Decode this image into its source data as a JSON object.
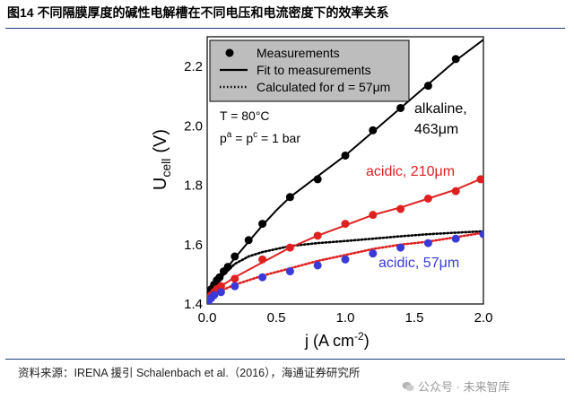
{
  "figure": {
    "title": "图14 不同隔膜厚度的碱性电解槽在不同电压和电流密度下的效率关系",
    "source": "资料来源：IRENA 援引 Schalenbach et al.（2016），海通证券研究所",
    "watermark": "公众号 · 未来智库"
  },
  "colors": {
    "black_series": "#000000",
    "red_series": "#e02020",
    "blue_series": "#3a3ad8",
    "rule": "#1f3f73",
    "legend_bg": "#bdbdbd"
  },
  "chart_data": {
    "type": "scatter",
    "xlabel_text": "j (A cm",
    "xlabel_sup": "-2",
    "xlabel_close": ")",
    "ylabel_main": "U",
    "ylabel_sub": "cell",
    "ylabel_unit": "(V)",
    "xlim": [
      0,
      2.0
    ],
    "ylim": [
      1.4,
      2.3
    ],
    "xticks": [
      0.0,
      0.5,
      1.0,
      1.5,
      2.0
    ],
    "xtick_labels": [
      "0.0",
      "0.5",
      "1.0",
      "1.5",
      "2.0"
    ],
    "yticks": [
      1.4,
      1.6,
      1.8,
      2.0,
      2.2
    ],
    "ytick_labels": [
      "1.4",
      "1.6",
      "1.8",
      "2.0",
      "2.2"
    ],
    "legend": {
      "placement": "top-left",
      "entries": [
        "Measurements",
        "Fit to measurements",
        "Calculated for d = 57μm"
      ]
    },
    "conditions": [
      "T = 80°C",
      "p",
      "a",
      " = p",
      "c",
      " = 1 bar"
    ],
    "series": [
      {
        "name": "alkaline, 463μm",
        "label_line1": "alkaline,",
        "label_line2": "463μm",
        "color": "#000000",
        "measurements": {
          "x": [
            0.01,
            0.03,
            0.05,
            0.07,
            0.09,
            0.12,
            0.15,
            0.2,
            0.3,
            0.4,
            0.6,
            0.8,
            1.0,
            1.2,
            1.4,
            1.6,
            1.8
          ],
          "y": [
            1.43,
            1.45,
            1.465,
            1.48,
            1.49,
            1.51,
            1.525,
            1.56,
            1.615,
            1.67,
            1.76,
            1.82,
            1.9,
            1.985,
            2.06,
            2.135,
            2.225
          ]
        },
        "fit": {
          "x": [
            0.0,
            0.02,
            0.05,
            0.1,
            0.2,
            0.3,
            0.4,
            0.5,
            0.6,
            0.8,
            1.0,
            1.2,
            1.4,
            1.6,
            1.8,
            2.0
          ],
          "y": [
            1.405,
            1.435,
            1.46,
            1.495,
            1.555,
            1.61,
            1.665,
            1.715,
            1.76,
            1.83,
            1.9,
            1.98,
            2.06,
            2.14,
            2.22,
            2.29
          ]
        },
        "calculated": {
          "x": [
            0.0,
            0.02,
            0.05,
            0.1,
            0.2,
            0.3,
            0.4,
            0.6,
            0.8,
            1.0,
            1.2,
            1.4,
            1.6,
            1.8,
            2.0
          ],
          "y": [
            1.4,
            1.43,
            1.455,
            1.49,
            1.535,
            1.56,
            1.575,
            1.595,
            1.605,
            1.612,
            1.62,
            1.628,
            1.635,
            1.64,
            1.645
          ]
        }
      },
      {
        "name": "acidic, 210μm",
        "label_line1": "acidic, 210μm",
        "label_line2": "",
        "color": "#e02020",
        "measurements": {
          "x": [
            0.01,
            0.03,
            0.05,
            0.07,
            0.1,
            0.2,
            0.4,
            0.6,
            0.8,
            1.0,
            1.2,
            1.4,
            1.6,
            1.8,
            1.98
          ],
          "y": [
            1.42,
            1.43,
            1.44,
            1.45,
            1.46,
            1.485,
            1.55,
            1.59,
            1.63,
            1.67,
            1.7,
            1.72,
            1.755,
            1.78,
            1.82
          ]
        },
        "fit": {
          "x": [
            0.0,
            0.02,
            0.05,
            0.1,
            0.2,
            0.3,
            0.4,
            0.5,
            0.6,
            0.8,
            1.0,
            1.2,
            1.4,
            1.6,
            1.8,
            2.0
          ],
          "y": [
            1.4,
            1.425,
            1.44,
            1.46,
            1.49,
            1.515,
            1.54,
            1.565,
            1.59,
            1.63,
            1.665,
            1.7,
            1.725,
            1.755,
            1.785,
            1.825
          ]
        },
        "calculated": {
          "x": [
            0.0,
            0.02,
            0.05,
            0.1,
            0.2,
            0.3,
            0.4,
            0.6,
            0.8,
            1.0,
            1.2,
            1.4,
            1.6,
            1.8,
            2.0
          ],
          "y": [
            1.4,
            1.415,
            1.43,
            1.445,
            1.465,
            1.48,
            1.495,
            1.52,
            1.545,
            1.565,
            1.585,
            1.6,
            1.61,
            1.625,
            1.64
          ]
        }
      },
      {
        "name": "acidic, 57μm",
        "label_line1": "acidic, 57μm",
        "label_line2": "",
        "color": "#3a3ad8",
        "measurements": {
          "x": [
            0.01,
            0.03,
            0.05,
            0.1,
            0.2,
            0.4,
            0.6,
            0.8,
            1.0,
            1.2,
            1.4,
            1.6,
            1.8,
            2.0
          ],
          "y": [
            1.41,
            1.42,
            1.43,
            1.44,
            1.46,
            1.49,
            1.51,
            1.53,
            1.55,
            1.57,
            1.59,
            1.605,
            1.62,
            1.635
          ]
        }
      }
    ]
  }
}
